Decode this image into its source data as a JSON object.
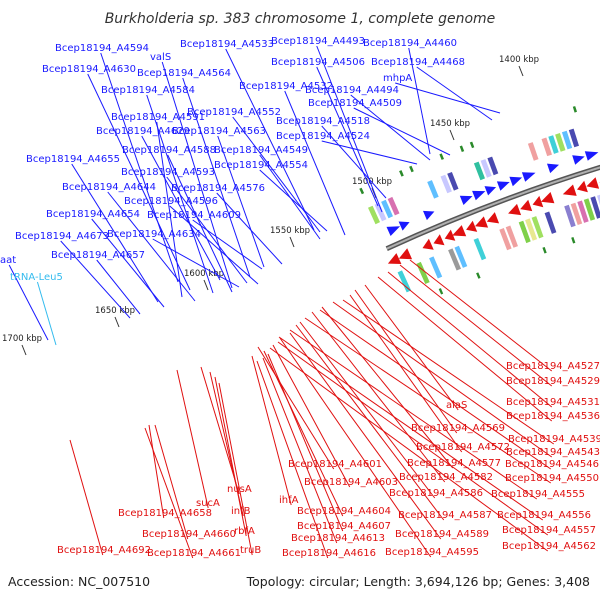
{
  "title": "Burkholderia sp. 383 chromosome 1, complete genome",
  "footer": {
    "accession": "Accession: NC_007510",
    "summary": "Topology: circular; Length: 3,694,126 bp; Genes: 3,408"
  },
  "colors": {
    "forward_strand": "#1a1aff",
    "reverse_strand": "#e01010",
    "trna": "#33bbee",
    "backbone": "#888888",
    "tick": "#2a8a2a"
  },
  "ticks": [
    "1400 kbp",
    "1450 kbp",
    "1500 kbp",
    "1550 kbp",
    "1600 kbp",
    "1650 kbp",
    "1700 kbp"
  ],
  "forward_labels": [
    "Bcep18194_A4594",
    "valS",
    "Bcep18194_A4533",
    "Bcep18194_A4493",
    "Bcep18194_A4460",
    "Bcep18194_A4630",
    "Bcep18194_A4564",
    "Bcep18194_A4506",
    "Bcep18194_A4468",
    "Bcep18194_A4584",
    "Bcep18194_A4532",
    "Bcep18194_A4494",
    "mhpA",
    "Bcep18194_A4552",
    "Bcep18194_A4509",
    "Bcep18194_A4591",
    "Bcep18194_A4629",
    "Bcep18194_A4563",
    "Bcep18194_A4518",
    "Bcep18194_A4524",
    "Bcep18194_A4588",
    "Bcep18194_A4549",
    "Bcep18194_A4655",
    "Bcep18194_A4554",
    "Bcep18194_A4593",
    "Bcep18194_A4644",
    "Bcep18194_A4576",
    "Bcep18194_A4596",
    "Bcep18194_A4654",
    "Bcep18194_A4609",
    "Bcep18194_A4673",
    "Bcep18194_A4634",
    "Bcep18194_A4657",
    "aat"
  ],
  "trna_labels": [
    "tRNA-Leu5"
  ],
  "reverse_labels": [
    "Bcep18194_A4527",
    "Bcep18194_A4529",
    "Bcep18194_A4531",
    "Bcep18194_A4536",
    "alaS",
    "Bcep18194_A4569",
    "Bcep18194_A4539",
    "Bcep18194_A4572",
    "Bcep18194_A4543",
    "Bcep18194_A4601",
    "Bcep18194_A4577",
    "Bcep18194_A4546",
    "Bcep18194_A4582",
    "Bcep18194_A4550",
    "nusA",
    "ihfA",
    "Bcep18194_A4603",
    "Bcep18194_A4586",
    "Bcep18194_A4555",
    "sucA",
    "Bcep18194_A4604",
    "infB",
    "Bcep18194_A4658",
    "Bcep18194_A4587",
    "Bcep18194_A4556",
    "Bcep18194_A4607",
    "rbfA",
    "Bcep18194_A4660",
    "Bcep18194_A4589",
    "Bcep18194_A4557",
    "Bcep18194_A4613",
    "truB",
    "Bcep18194_A4692",
    "Bcep18194_A4661",
    "Bcep18194_A4616",
    "Bcep18194_A4595",
    "Bcep18194_A4562"
  ]
}
